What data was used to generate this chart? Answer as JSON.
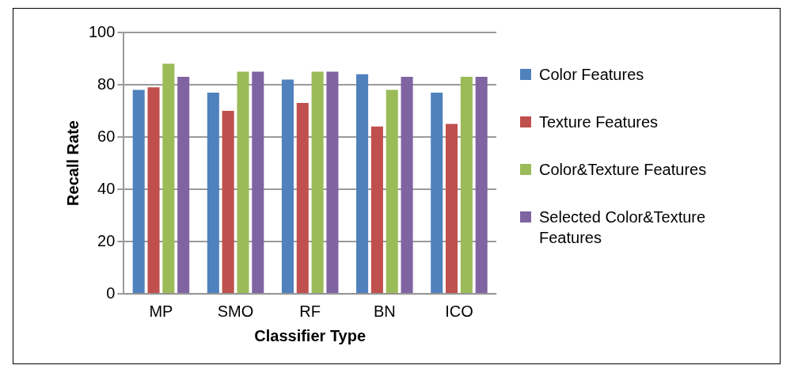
{
  "chart_data": {
    "type": "bar",
    "xlabel": "Classifier Type",
    "ylabel": "Recall Rate",
    "categories": [
      "MP",
      "SMO",
      "RF",
      "BN",
      "ICO"
    ],
    "series": [
      {
        "name": "Color Features",
        "color": "#4f81bd",
        "values": [
          78,
          77,
          82,
          84,
          77
        ]
      },
      {
        "name": "Texture Features",
        "color": "#c0504d",
        "values": [
          79,
          70,
          73,
          64,
          65
        ]
      },
      {
        "name": "Color&Texture Features",
        "color": "#9bbb59",
        "values": [
          88,
          85,
          85,
          78,
          83
        ]
      },
      {
        "name": "Selected Color&Texture Features",
        "color": "#8064a2",
        "values": [
          83,
          85,
          85,
          83,
          83
        ]
      }
    ],
    "ylim": [
      0,
      100
    ],
    "yticks": [
      0,
      20,
      40,
      60,
      80,
      100
    ],
    "grid": "y",
    "legend": "right"
  }
}
